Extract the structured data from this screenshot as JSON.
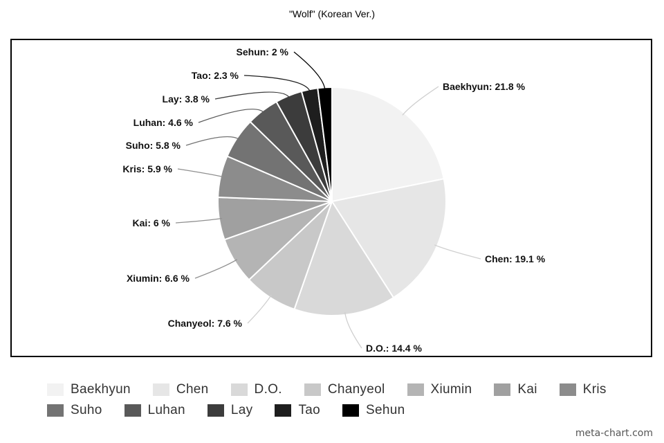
{
  "chart_data": {
    "type": "pie",
    "title": "\"Wolf\" (Korean Ver.)",
    "slices": [
      {
        "name": "Baekhyun",
        "value": 21.8,
        "label": "Baekhyun: 21.8 %",
        "color": "#f2f2f2"
      },
      {
        "name": "Chen",
        "value": 19.1,
        "label": "Chen: 19.1 %",
        "color": "#e6e6e6"
      },
      {
        "name": "D.O.",
        "value": 14.4,
        "label": "D.O.: 14.4 %",
        "color": "#d9d9d9"
      },
      {
        "name": "Chanyeol",
        "value": 7.6,
        "label": "Chanyeol: 7.6 %",
        "color": "#c8c8c8"
      },
      {
        "name": "Xiumin",
        "value": 6.6,
        "label": "Xiumin: 6.6 %",
        "color": "#b4b4b4"
      },
      {
        "name": "Kai",
        "value": 6,
        "label": "Kai: 6 %",
        "color": "#a0a0a0"
      },
      {
        "name": "Kris",
        "value": 5.9,
        "label": "Kris: 5.9 %",
        "color": "#8c8c8c"
      },
      {
        "name": "Suho",
        "value": 5.8,
        "label": "Suho: 5.8 %",
        "color": "#737373"
      },
      {
        "name": "Luhan",
        "value": 4.6,
        "label": "Luhan: 4.6 %",
        "color": "#595959"
      },
      {
        "name": "Lay",
        "value": 3.8,
        "label": "Lay: 3.8 %",
        "color": "#3c3c3c"
      },
      {
        "name": "Tao",
        "value": 2.3,
        "label": "Tao: 2.3 %",
        "color": "#1e1e1e"
      },
      {
        "name": "Sehun",
        "value": 2,
        "label": "Sehun: 2 %",
        "color": "#000000"
      }
    ],
    "legend_position": "bottom"
  },
  "watermark": "meta-chart.com"
}
